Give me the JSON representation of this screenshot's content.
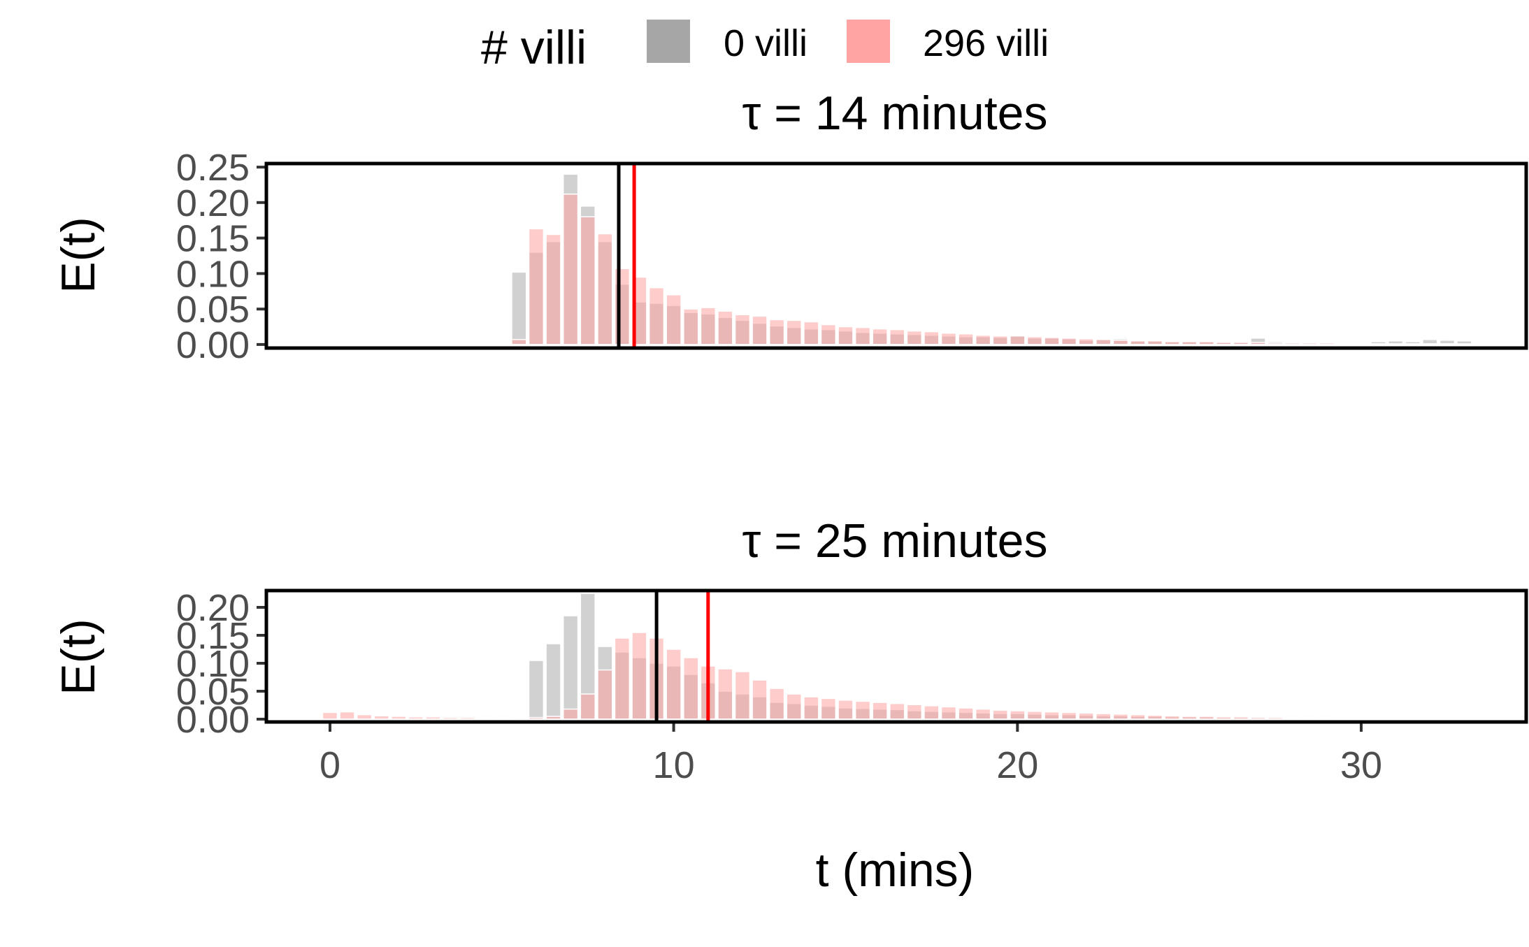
{
  "legend": {
    "title": "# villi",
    "items": [
      {
        "label": "0 villi",
        "color": "#a6a6a6"
      },
      {
        "label": "296 villi",
        "color": "#ffa3a3"
      }
    ]
  },
  "colors": {
    "bar_0_villi": "#bdbdbd",
    "bar_296_villi": "#ffa3a3",
    "mean_0_villi": "#000000",
    "mean_296_villi": "#ff0000"
  },
  "chart_data": [
    {
      "type": "bar",
      "panel_title": "τ = 14 minutes",
      "xlabel": "",
      "ylabel": "E(t)",
      "ylim": [
        -0.005,
        0.255
      ],
      "yticks": [
        "0.00",
        "0.05",
        "0.10",
        "0.15",
        "0.20",
        "0.25"
      ],
      "x": [
        5.5,
        6,
        6.5,
        7,
        7.5,
        8,
        8.5,
        9,
        9.5,
        10,
        10.5,
        11,
        11.5,
        12,
        12.5,
        13,
        13.5,
        14,
        14.5,
        15,
        15.5,
        16,
        16.5,
        17,
        17.5,
        18,
        18.5,
        19,
        19.5,
        20,
        20.5,
        21,
        21.5,
        22,
        22.5,
        23,
        23.5,
        24,
        24.5,
        25,
        25.5,
        26,
        26.5,
        27,
        27.5,
        28,
        28.5,
        29,
        29.5,
        30,
        30.5,
        31,
        31.5,
        32,
        32.5,
        33
      ],
      "series": [
        {
          "name": "0 villi",
          "values": [
            0.102,
            0.13,
            0.145,
            0.24,
            0.195,
            0.145,
            0.085,
            0.06,
            0.058,
            0.055,
            0.045,
            0.043,
            0.038,
            0.034,
            0.03,
            0.026,
            0.024,
            0.022,
            0.021,
            0.019,
            0.017,
            0.016,
            0.015,
            0.014,
            0.013,
            0.012,
            0.011,
            0.011,
            0.01,
            0.012,
            0.009,
            0.009,
            0.008,
            0.006,
            0.007,
            0.008,
            0.006,
            0.005,
            0.005,
            0.004,
            0.004,
            0.003,
            0.003,
            0.009,
            0.004,
            0.003,
            0.003,
            0.003,
            0.002,
            0.002,
            0.004,
            0.005,
            0.004,
            0.007,
            0.006,
            0.005
          ]
        },
        {
          "name": "296 villi",
          "values": [
            0.007,
            0.163,
            0.155,
            0.212,
            0.18,
            0.156,
            0.107,
            0.095,
            0.08,
            0.07,
            0.05,
            0.052,
            0.047,
            0.042,
            0.04,
            0.035,
            0.034,
            0.032,
            0.028,
            0.025,
            0.024,
            0.022,
            0.021,
            0.019,
            0.018,
            0.016,
            0.015,
            0.013,
            0.012,
            0.012,
            0.011,
            0.01,
            0.009,
            0.008,
            0.007,
            0.006,
            0.005,
            0.005,
            0.004,
            0.004,
            0.004,
            0.003,
            0.003,
            0.003,
            0.002,
            0.002,
            0.002,
            0.002,
            0.001,
            0.001,
            0.001,
            0.001,
            0.001,
            0.001,
            0.001,
            0.001
          ]
        }
      ],
      "mean_lines": {
        "0 villi": 8.4,
        "296 villi": 8.85
      }
    },
    {
      "type": "bar",
      "panel_title": "τ = 25 minutes",
      "xlabel": "t (mins)",
      "ylabel": "E(t)",
      "ylim": [
        -0.005,
        0.23
      ],
      "yticks": [
        "0.00",
        "0.05",
        "0.10",
        "0.15",
        "0.20"
      ],
      "xticks": [
        0,
        10,
        20,
        30
      ],
      "x": [
        0,
        0.5,
        1,
        1.5,
        2,
        2.5,
        3,
        3.5,
        4,
        4.5,
        5,
        5.5,
        6,
        6.5,
        7,
        7.5,
        8,
        8.5,
        9,
        9.5,
        10,
        10.5,
        11,
        11.5,
        12,
        12.5,
        13,
        13.5,
        14,
        14.5,
        15,
        15.5,
        16,
        16.5,
        17,
        17.5,
        18,
        18.5,
        19,
        19.5,
        20,
        20.5,
        21,
        21.5,
        22,
        22.5,
        23,
        23.5,
        24,
        24.5,
        25,
        25.5,
        26,
        26.5,
        27,
        27.5,
        28,
        28.5,
        29
      ],
      "series": [
        {
          "name": "0 villi",
          "values": [
            0,
            0,
            0,
            0,
            0,
            0,
            0,
            0,
            0,
            0,
            0,
            0.003,
            0.105,
            0.135,
            0.185,
            0.225,
            0.13,
            0.12,
            0.11,
            0.1,
            0.095,
            0.08,
            0.065,
            0.05,
            0.045,
            0.04,
            0.03,
            0.028,
            0.025,
            0.023,
            0.02,
            0.019,
            0.018,
            0.017,
            0.015,
            0.014,
            0.013,
            0.012,
            0.011,
            0.01,
            0.01,
            0.009,
            0.008,
            0.008,
            0.007,
            0.006,
            0.006,
            0.005,
            0.005,
            0.004,
            0.004,
            0.004,
            0.003,
            0.003,
            0.003,
            0.002,
            0.002,
            0.002,
            0.002
          ]
        },
        {
          "name": "296 villi",
          "values": [
            0.012,
            0.013,
            0.008,
            0.006,
            0.005,
            0.004,
            0.004,
            0.003,
            0.003,
            0.002,
            0.002,
            0.002,
            0.003,
            0.005,
            0.018,
            0.045,
            0.088,
            0.145,
            0.155,
            0.145,
            0.125,
            0.11,
            0.095,
            0.09,
            0.085,
            0.07,
            0.055,
            0.045,
            0.04,
            0.037,
            0.034,
            0.032,
            0.03,
            0.028,
            0.026,
            0.024,
            0.022,
            0.02,
            0.018,
            0.016,
            0.015,
            0.014,
            0.013,
            0.012,
            0.011,
            0.01,
            0.009,
            0.008,
            0.007,
            0.006,
            0.005,
            0.005,
            0.004,
            0.004,
            0.003,
            0.003,
            0.002,
            0.002,
            0.002
          ]
        }
      ],
      "mean_lines": {
        "0 villi": 9.5,
        "296 villi": 11.0
      }
    }
  ]
}
